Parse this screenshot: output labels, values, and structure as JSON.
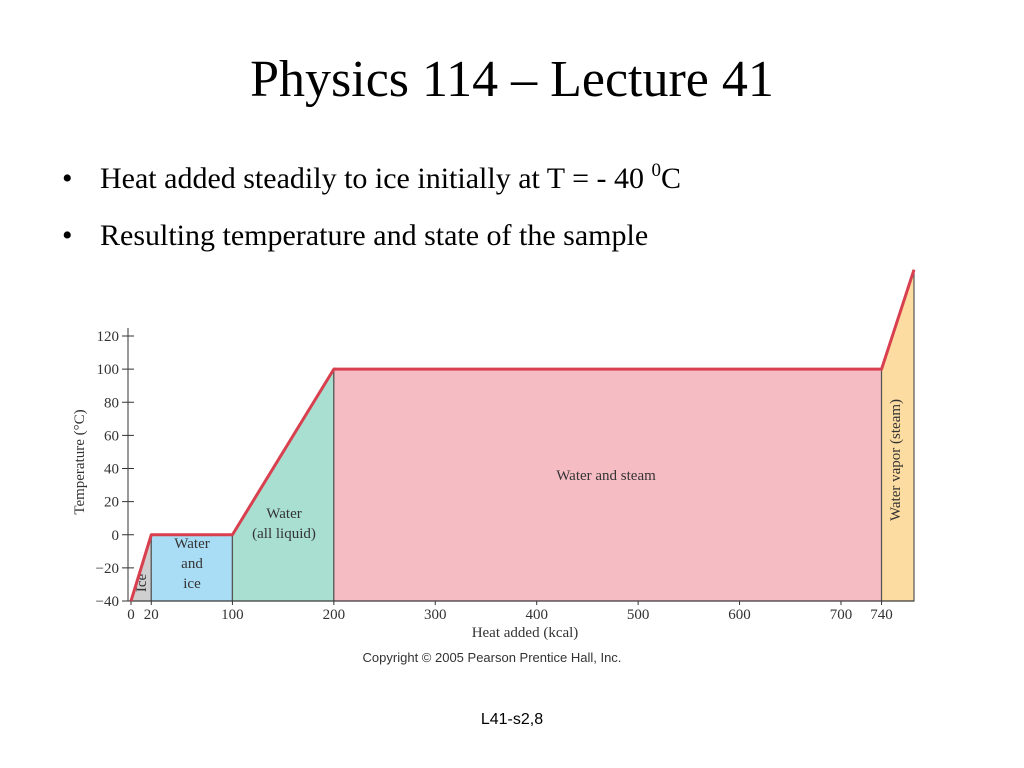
{
  "slide": {
    "title": "Physics 114 – Lecture 41",
    "bullets": [
      {
        "text": "Heat added steadily to ice initially at T = - 40 ",
        "sup": "0",
        "tail": "C"
      },
      {
        "text": "Resulting temperature and state of the sample"
      }
    ],
    "copyright": "Copyright © 2005 Pearson Prentice Hall, Inc.",
    "footer": "L41-s2,8"
  },
  "chart_data": {
    "type": "line",
    "x_label": "Heat added (kcal)",
    "y_label": "Temperature (°C)",
    "x": [
      0,
      20,
      100,
      200,
      740,
      772
    ],
    "series": [
      {
        "color": "#d9404f",
        "values": [
          -40,
          0,
          0,
          100,
          100,
          160
        ]
      }
    ],
    "xlim": [
      0,
      772
    ],
    "ylim": [
      -40,
      120
    ],
    "xticks": [
      0,
      20,
      100,
      200,
      300,
      400,
      500,
      600,
      700,
      740
    ],
    "yticks": [
      {
        "value": -40,
        "label": "−40"
      },
      {
        "value": -20,
        "label": "−20"
      },
      0,
      20,
      40,
      60,
      80,
      100,
      120
    ],
    "regions": [
      {
        "lines": [
          "Ice"
        ],
        "x": [
          0,
          20
        ],
        "color": "#cfcfcf"
      },
      {
        "lines": [
          "Water",
          "and",
          "ice"
        ],
        "x": [
          20,
          100
        ],
        "color": "#a9dcf5"
      },
      {
        "lines": [
          "Water",
          "(all liquid)"
        ],
        "x": [
          100,
          200
        ],
        "color": "#a9dfd0"
      },
      {
        "lines": [
          "Water and steam"
        ],
        "x": [
          200,
          740
        ],
        "color": "#f6bcc4"
      },
      {
        "lines": [
          "Water vapor (steam)"
        ],
        "x": [
          740,
          772
        ],
        "color": "#fcdca0"
      }
    ]
  }
}
